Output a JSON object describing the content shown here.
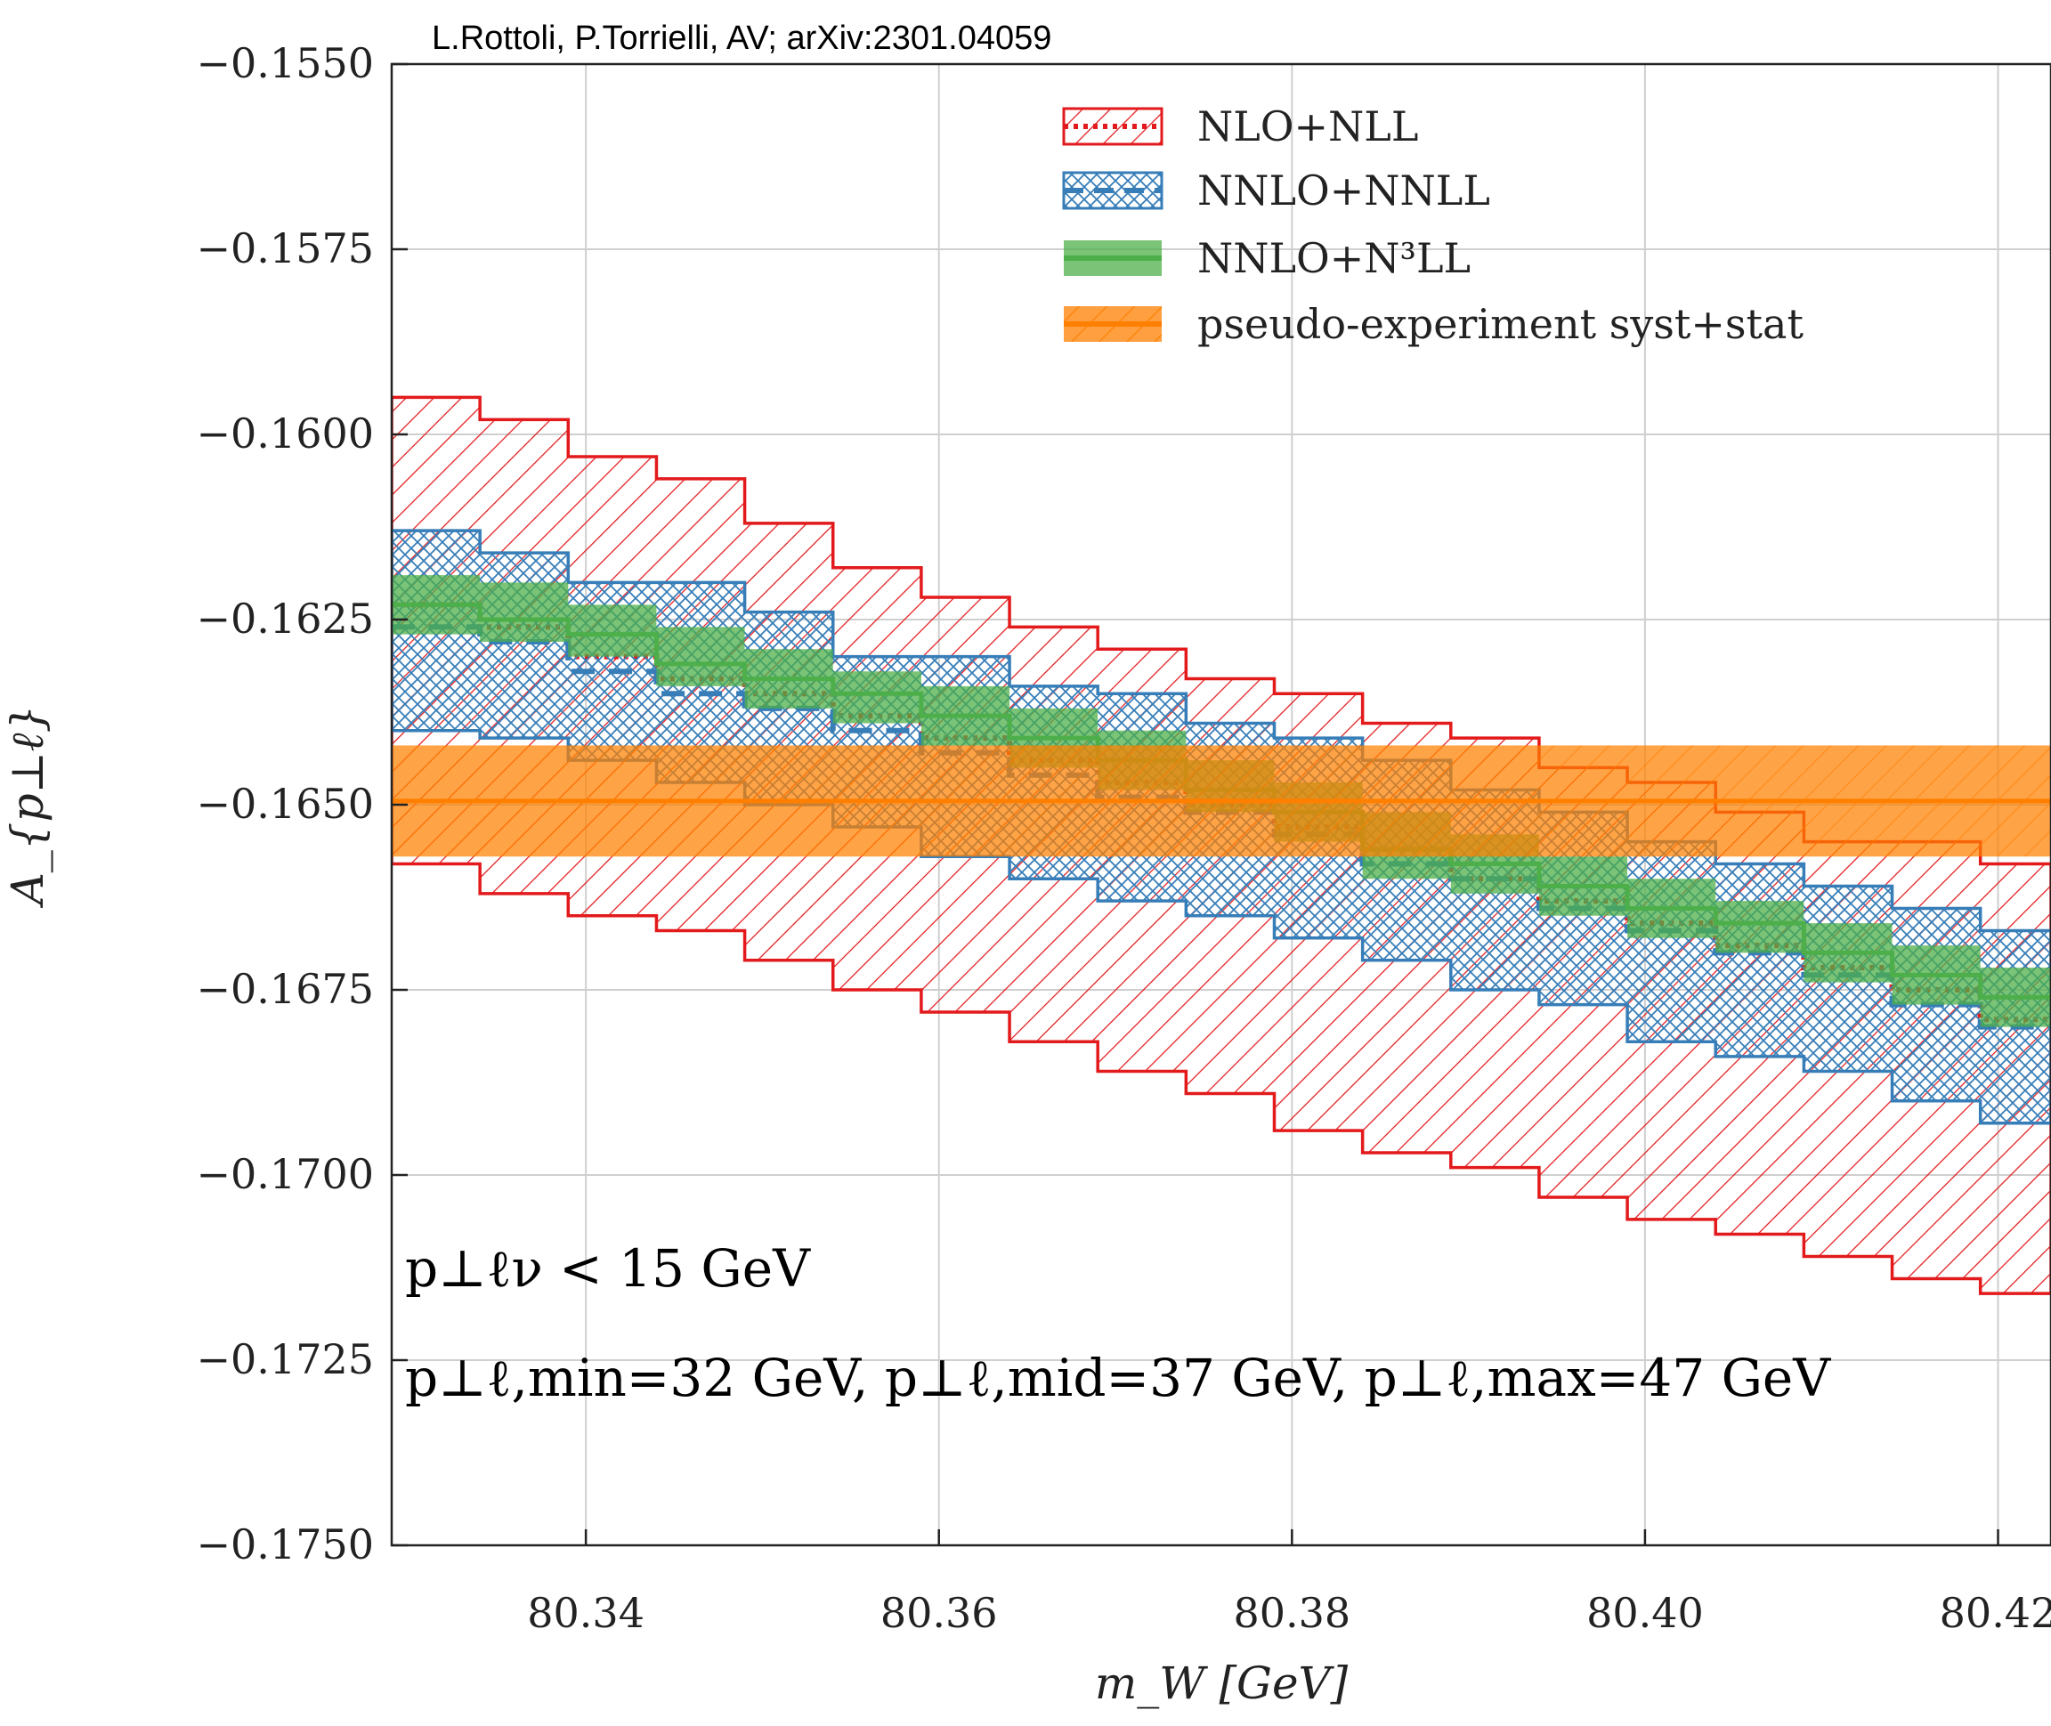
{
  "credit": "L.Rottoli, P.Torrielli, AV;   arXiv:2301.04059",
  "colors": {
    "nlo": "#e31a1c",
    "nnlo": "#377eb8",
    "n3ll": "#4daf4a",
    "exp": "#ff7f00"
  },
  "chart_data": {
    "type": "area",
    "xlabel": "m_W [GeV]",
    "ylabel": "A_{p⊥ℓ}",
    "xlim": [
      80.329,
      80.423
    ],
    "ylim": [
      -0.175,
      -0.155
    ],
    "xticks": [
      80.34,
      80.36,
      80.38,
      80.4,
      80.42
    ],
    "xtick_labels": [
      "80.34",
      "80.36",
      "80.38",
      "80.40",
      "80.42"
    ],
    "yticks": [
      -0.155,
      -0.1575,
      -0.16,
      -0.1625,
      -0.165,
      -0.1675,
      -0.17,
      -0.1725,
      -0.175
    ],
    "ytick_labels": [
      "−0.1550",
      "−0.1575",
      "−0.1600",
      "−0.1625",
      "−0.1650",
      "−0.1675",
      "−0.1700",
      "−0.1725",
      "−0.1750"
    ],
    "grid": true,
    "legend_position": "top-right",
    "bin_edges": [
      80.329,
      80.334,
      80.339,
      80.344,
      80.349,
      80.354,
      80.359,
      80.364,
      80.369,
      80.374,
      80.379,
      80.384,
      80.389,
      80.394,
      80.399,
      80.404,
      80.409,
      80.414,
      80.419,
      80.423
    ],
    "series": [
      {
        "name": "NLO+NLL",
        "style": "hatch-diagonal",
        "center": [
          -0.1623,
          -0.1626,
          -0.163,
          -0.1633,
          -0.1635,
          -0.1638,
          -0.1641,
          -0.1644,
          -0.1647,
          -0.165,
          -0.1653,
          -0.1656,
          -0.166,
          -0.1663,
          -0.1666,
          -0.1669,
          -0.1672,
          -0.1675,
          -0.1679
        ],
        "upper": [
          -0.1595,
          -0.1598,
          -0.1603,
          -0.1606,
          -0.1612,
          -0.1618,
          -0.1622,
          -0.1626,
          -0.1629,
          -0.1633,
          -0.1635,
          -0.1639,
          -0.1641,
          -0.1645,
          -0.1647,
          -0.1651,
          -0.1655,
          -0.1655,
          -0.1658
        ],
        "lower": [
          -0.1658,
          -0.1662,
          -0.1665,
          -0.1667,
          -0.1671,
          -0.1675,
          -0.1678,
          -0.1682,
          -0.1686,
          -0.1689,
          -0.1694,
          -0.1697,
          -0.1699,
          -0.1703,
          -0.1706,
          -0.1708,
          -0.1711,
          -0.1714,
          -0.1716
        ]
      },
      {
        "name": "NNLO+NNLL",
        "style": "hatch-cross",
        "center": [
          -0.1626,
          -0.1628,
          -0.1632,
          -0.1635,
          -0.1637,
          -0.164,
          -0.1643,
          -0.1646,
          -0.1649,
          -0.1651,
          -0.1654,
          -0.1658,
          -0.166,
          -0.1664,
          -0.1667,
          -0.167,
          -0.1673,
          -0.1677,
          -0.168
        ],
        "upper": [
          -0.1613,
          -0.1616,
          -0.162,
          -0.162,
          -0.1624,
          -0.163,
          -0.163,
          -0.1634,
          -0.1635,
          -0.1639,
          -0.1641,
          -0.1644,
          -0.1648,
          -0.1651,
          -0.1655,
          -0.1658,
          -0.1661,
          -0.1664,
          -0.1667
        ],
        "lower": [
          -0.164,
          -0.1641,
          -0.1644,
          -0.1647,
          -0.165,
          -0.1653,
          -0.1657,
          -0.166,
          -0.1663,
          -0.1665,
          -0.1668,
          -0.1671,
          -0.1675,
          -0.1677,
          -0.1682,
          -0.1684,
          -0.1686,
          -0.169,
          -0.1693
        ]
      },
      {
        "name": "NNLO+N³LL",
        "style": "solid",
        "center": [
          -0.1623,
          -0.1625,
          -0.1627,
          -0.1631,
          -0.1633,
          -0.1635,
          -0.1638,
          -0.1641,
          -0.1644,
          -0.1648,
          -0.1651,
          -0.1656,
          -0.1658,
          -0.1661,
          -0.1664,
          -0.1666,
          -0.167,
          -0.1673,
          -0.1676
        ],
        "upper": [
          -0.1619,
          -0.162,
          -0.1623,
          -0.1626,
          -0.1629,
          -0.1632,
          -0.1634,
          -0.1637,
          -0.164,
          -0.1644,
          -0.1647,
          -0.1651,
          -0.1654,
          -0.1657,
          -0.166,
          -0.1663,
          -0.1666,
          -0.1669,
          -0.1672
        ],
        "lower": [
          -0.1627,
          -0.1628,
          -0.163,
          -0.1634,
          -0.1637,
          -0.1639,
          -0.1642,
          -0.1645,
          -0.1648,
          -0.1651,
          -0.1655,
          -0.166,
          -0.1662,
          -0.1665,
          -0.1668,
          -0.167,
          -0.1674,
          -0.1677,
          -0.168
        ]
      },
      {
        "name": "pseudo-experiment syst+stat",
        "style": "hatch-solid",
        "center": -0.16495,
        "upper": -0.1642,
        "lower": -0.1657
      }
    ],
    "annotations": [
      "p⊥ℓν < 15 GeV",
      "p⊥ℓ,min=32 GeV, p⊥ℓ,mid=37 GeV, p⊥ℓ,max=47 GeV"
    ]
  }
}
